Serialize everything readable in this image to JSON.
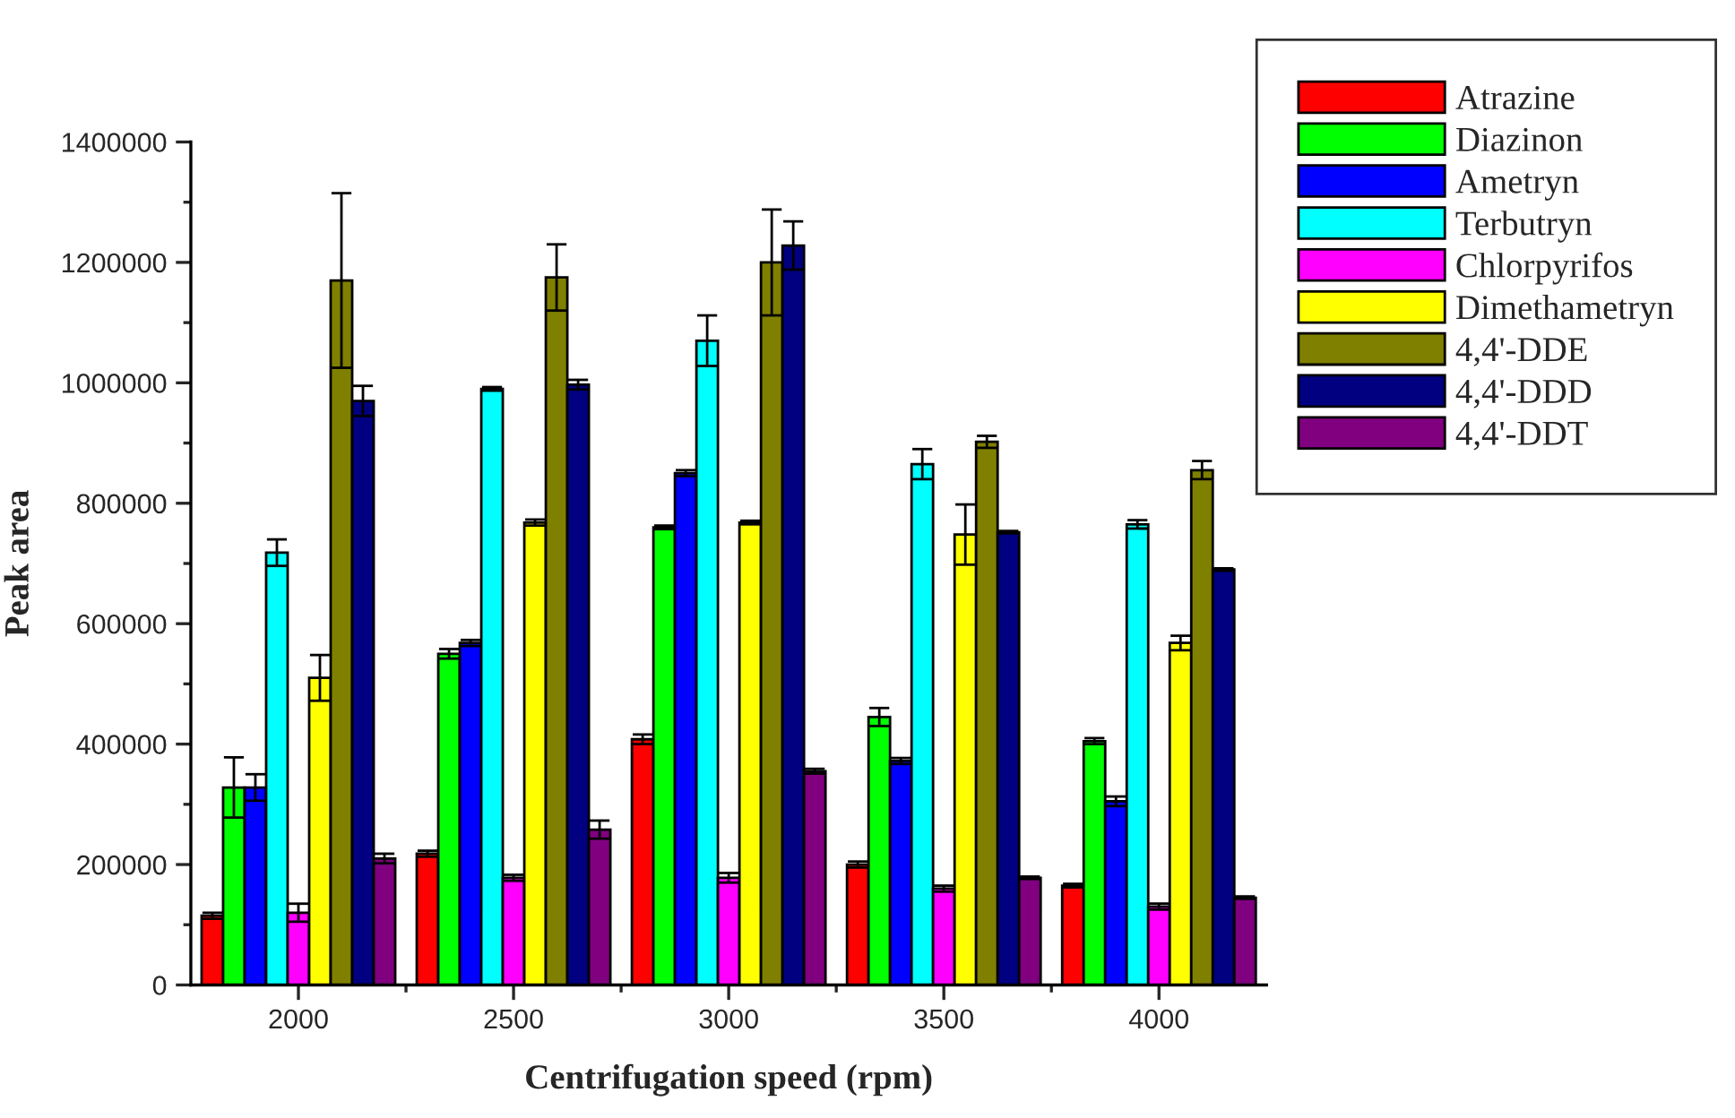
{
  "chart_data": {
    "type": "bar",
    "xlabel": "Centrifugation speed (rpm)",
    "ylabel": "Peak area",
    "categories": [
      "2000",
      "2500",
      "3000",
      "3500",
      "4000"
    ],
    "ylim": [
      0,
      1400000
    ],
    "yticks": [
      0,
      200000,
      400000,
      600000,
      800000,
      1000000,
      1200000,
      1400000
    ],
    "legend": "top right",
    "grid": false,
    "series": [
      {
        "name": "Atrazine",
        "color": "#ff0000",
        "values": [
          115000,
          218000,
          408000,
          200000,
          165000
        ],
        "errors": [
          5000,
          5000,
          8000,
          5000,
          3000
        ]
      },
      {
        "name": "Diazinon",
        "color": "#00ff00",
        "values": [
          328000,
          550000,
          760000,
          445000,
          405000
        ],
        "errors": [
          50000,
          8000,
          3000,
          15000,
          5000
        ]
      },
      {
        "name": "Ametryn",
        "color": "#0000ff",
        "values": [
          328000,
          568000,
          850000,
          372000,
          305000
        ],
        "errors": [
          22000,
          5000,
          5000,
          5000,
          8000
        ]
      },
      {
        "name": "Terbutryn",
        "color": "#00ffff",
        "values": [
          718000,
          990000,
          1070000,
          865000,
          765000
        ],
        "errors": [
          22000,
          3000,
          42000,
          25000,
          7000
        ]
      },
      {
        "name": "Chlorpyrifos",
        "color": "#ff00ff",
        "values": [
          120000,
          178000,
          178000,
          160000,
          130000
        ],
        "errors": [
          15000,
          5000,
          8000,
          5000,
          5000
        ]
      },
      {
        "name": "Dimethametryn",
        "color": "#ffff00",
        "values": [
          510000,
          768000,
          768000,
          748000,
          568000
        ],
        "errors": [
          38000,
          5000,
          3000,
          50000,
          12000
        ]
      },
      {
        "name": "4,4'-DDE",
        "color": "#808000",
        "values": [
          1170000,
          1175000,
          1200000,
          902000,
          855000
        ],
        "errors": [
          145000,
          55000,
          88000,
          10000,
          15000
        ]
      },
      {
        "name": "4,4'-DDD",
        "color": "#000080",
        "values": [
          970000,
          997000,
          1228000,
          752000,
          690000
        ],
        "errors": [
          25000,
          8000,
          40000,
          2000,
          2000
        ]
      },
      {
        "name": "4,4'-DDT",
        "color": "#800080",
        "values": [
          210000,
          258000,
          355000,
          178000,
          145000
        ],
        "errors": [
          8000,
          15000,
          4000,
          2000,
          2000
        ]
      }
    ]
  }
}
